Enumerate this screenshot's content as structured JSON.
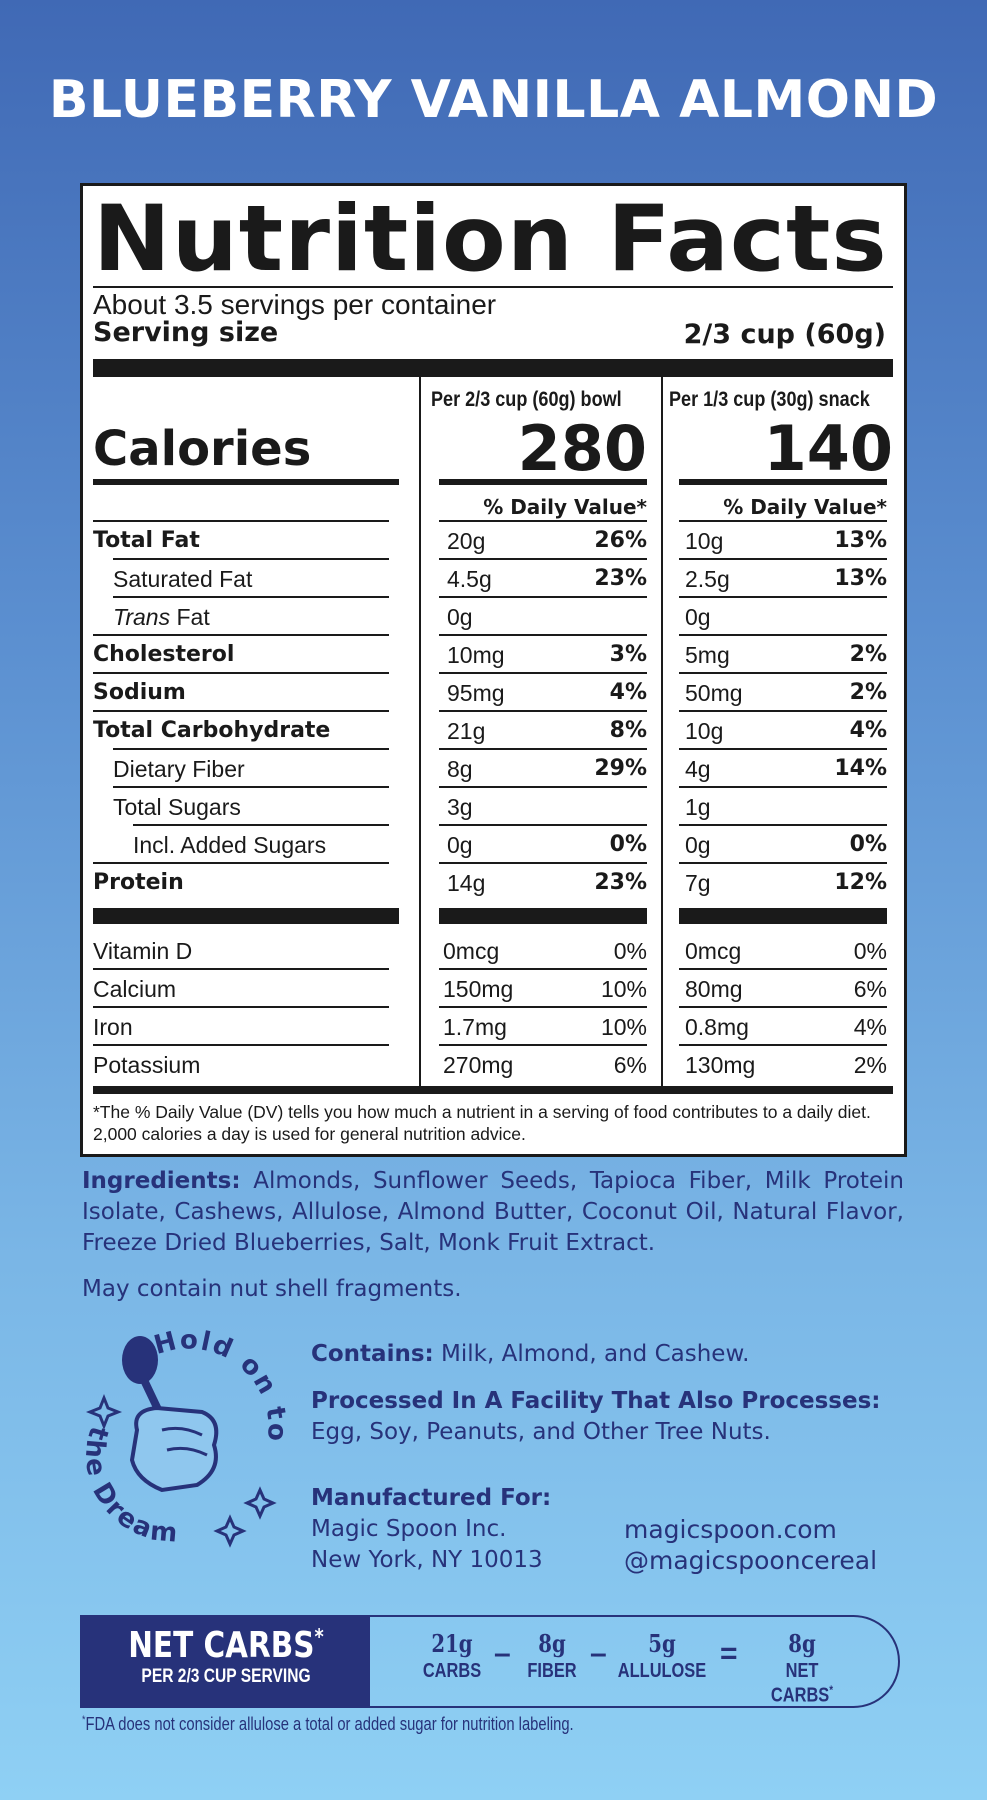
{
  "product": {
    "title": "BLUEBERRY VANILLA ALMOND"
  },
  "nutrition": {
    "title": "Nutrition Facts",
    "servings_per_container": "About 3.5 servings per container",
    "serving_size_label": "Serving size",
    "serving_size_value": "2/3 cup (60g)",
    "calories_label": "Calories",
    "columns": [
      {
        "header": "Per 2/3 cup (60g) bowl",
        "calories": "280",
        "dv_header": "% Daily Value*"
      },
      {
        "header": "Per 1/3 cup (30g) snack",
        "calories": "140",
        "dv_header": "% Daily Value*"
      }
    ],
    "rows": [
      {
        "label": "Total Fat",
        "bold": true,
        "indent": 0,
        "bowl_amt": "20g",
        "bowl_pct": "26%",
        "snack_amt": "10g",
        "snack_pct": "13%"
      },
      {
        "label": "Saturated Fat",
        "bold": false,
        "indent": 1,
        "bowl_amt": "4.5g",
        "bowl_pct": "23%",
        "snack_amt": "2.5g",
        "snack_pct": "13%"
      },
      {
        "label_italic": "Trans",
        "label": " Fat",
        "bold": false,
        "indent": 1,
        "bowl_amt": "0g",
        "bowl_pct": "",
        "snack_amt": "0g",
        "snack_pct": ""
      },
      {
        "label": "Cholesterol",
        "bold": true,
        "indent": 0,
        "bowl_amt": "10mg",
        "bowl_pct": "3%",
        "snack_amt": "5mg",
        "snack_pct": "2%"
      },
      {
        "label": "Sodium",
        "bold": true,
        "indent": 0,
        "bowl_amt": "95mg",
        "bowl_pct": "4%",
        "snack_amt": "50mg",
        "snack_pct": "2%"
      },
      {
        "label": "Total Carbohydrate",
        "bold": true,
        "indent": 0,
        "bowl_amt": "21g",
        "bowl_pct": "8%",
        "snack_amt": "10g",
        "snack_pct": "4%"
      },
      {
        "label": "Dietary Fiber",
        "bold": false,
        "indent": 1,
        "bowl_amt": "8g",
        "bowl_pct": "29%",
        "snack_amt": "4g",
        "snack_pct": "14%"
      },
      {
        "label": "Total Sugars",
        "bold": false,
        "indent": 1,
        "bowl_amt": "3g",
        "bowl_pct": "",
        "snack_amt": "1g",
        "snack_pct": ""
      },
      {
        "label": "Incl. Added Sugars",
        "bold": false,
        "indent": 2,
        "bowl_amt": "0g",
        "bowl_pct": "0%",
        "snack_amt": "0g",
        "snack_pct": "0%"
      },
      {
        "label": "Protein",
        "bold": true,
        "indent": 0,
        "bowl_amt": "14g",
        "bowl_pct": "23%",
        "snack_amt": "7g",
        "snack_pct": "12%"
      }
    ],
    "vitamins": [
      {
        "label": "Vitamin D",
        "bowl_amt": "0mcg",
        "bowl_pct": "0%",
        "snack_amt": "0mcg",
        "snack_pct": "0%"
      },
      {
        "label": "Calcium",
        "bowl_amt": "150mg",
        "bowl_pct": "10%",
        "snack_amt": "80mg",
        "snack_pct": "6%"
      },
      {
        "label": "Iron",
        "bowl_amt": "1.7mg",
        "bowl_pct": "10%",
        "snack_amt": "0.8mg",
        "snack_pct": "4%"
      },
      {
        "label": "Potassium",
        "bowl_amt": "270mg",
        "bowl_pct": "6%",
        "snack_amt": "130mg",
        "snack_pct": "2%"
      }
    ],
    "footnote": "*The % Daily Value (DV) tells you how much a nutrient in a serving of food contributes to a daily diet. 2,000 calories a day is used for general nutrition advice."
  },
  "ingredients": {
    "label": "Ingredients:",
    "text": " Almonds, Sunflower Seeds, Tapioca Fiber, Milk Protein Isolate, Cashews, Allulose, Almond Butter, Coconut Oil, Natural Flavor, Freeze Dried Blueberries, Salt, Monk Fruit Extract.",
    "shell_warning": "May contain nut shell fragments."
  },
  "badge": {
    "text": "Hold on to the Dream"
  },
  "allergens": {
    "contains_label": "Contains:",
    "contains_text": " Milk,  Almond, and Cashew.",
    "facility_label": "Processed In A Facility That Also Processes:",
    "facility_text": "Egg, Soy, Peanuts, and Other Tree Nuts."
  },
  "manufacturer": {
    "label": "Manufactured For:",
    "name": "Magic Spoon Inc.",
    "address": "New York, NY 10013",
    "website": "magicspoon.com",
    "social": "@magicspooncereal"
  },
  "net_carbs": {
    "title": "NET CARBS",
    "title_mark": "*",
    "subtitle": "PER 2/3 CUP SERVING",
    "items": [
      {
        "value": "21g",
        "label": "CARBS"
      },
      {
        "value": "8g",
        "label": "FIBER"
      },
      {
        "value": "5g",
        "label": "ALLULOSE"
      },
      {
        "value": "8g",
        "label": "NET CARBS",
        "mark": "*"
      }
    ],
    "operators": [
      "–",
      "–",
      "="
    ],
    "note_mark": "*",
    "note": "FDA does not consider allulose a total or added sugar for nutrition labeling."
  },
  "colors": {
    "navy": "#27327a",
    "background_top": "#4069b5",
    "background_bottom": "#8fd0f4"
  }
}
